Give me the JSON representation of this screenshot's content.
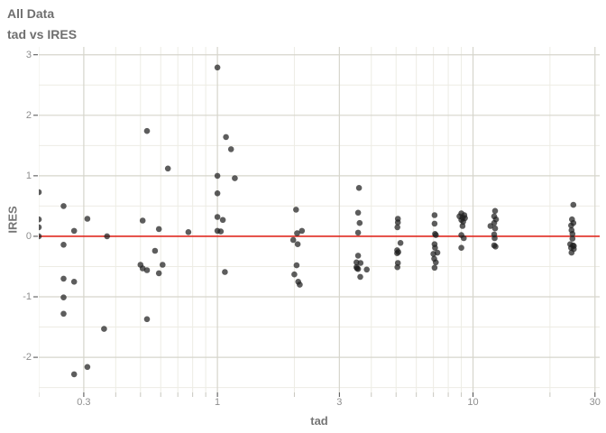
{
  "header": {
    "title": "All Data",
    "subtitle": "tad vs IRES"
  },
  "chart_data": {
    "type": "scatter",
    "title": "All Data",
    "subtitle": "tad vs IRES",
    "xlabel": "tad",
    "ylabel": "IRES",
    "x_scale": "log10",
    "xlim": [
      0.2,
      31.3
    ],
    "ylim": [
      -2.58,
      3.13
    ],
    "grid": true,
    "legend": "none",
    "colors": {
      "point": "#1f1f1f",
      "reference_line": "#e02b22",
      "major_grid": "#d6d5cc",
      "minor_grid": "#edece4",
      "major_tick": "#4a4a4a",
      "minor_tick": "#c8c7bf"
    },
    "point_opacity": 0.72,
    "point_radius": 3.3,
    "x_major_ticks": [
      {
        "value": 0.3,
        "label": "0.3"
      },
      {
        "value": 1,
        "label": "1"
      },
      {
        "value": 3,
        "label": "3"
      },
      {
        "value": 10,
        "label": "10"
      },
      {
        "value": 30,
        "label": "30"
      }
    ],
    "x_minor_ticks": [
      0.2,
      0.4,
      0.5,
      0.6,
      0.7,
      0.8,
      0.9,
      2,
      4,
      5,
      6,
      7,
      8,
      9,
      20
    ],
    "y_major_ticks": [
      {
        "value": 3,
        "label": "3"
      },
      {
        "value": 2,
        "label": "2"
      },
      {
        "value": 1,
        "label": "1"
      },
      {
        "value": 0,
        "label": "0"
      },
      {
        "value": -1,
        "label": "-1"
      },
      {
        "value": -2,
        "label": "-2"
      }
    ],
    "y_minor_ticks": [
      2.5,
      1.5,
      0.5,
      -0.5,
      -1.5,
      -2.5
    ],
    "reference_line": {
      "y": 0
    },
    "points": [
      [
        0.2,
        0.73
      ],
      [
        0.2,
        0.28
      ],
      [
        0.2,
        0.15
      ],
      [
        0.2,
        0.0
      ],
      [
        0.25,
        0.5
      ],
      [
        0.25,
        -0.14
      ],
      [
        0.25,
        -0.7
      ],
      [
        0.25,
        -1.01
      ],
      [
        0.25,
        -1.28
      ],
      [
        0.275,
        0.09
      ],
      [
        0.275,
        -0.75
      ],
      [
        0.275,
        -2.28
      ],
      [
        0.31,
        0.29
      ],
      [
        0.31,
        -2.16
      ],
      [
        0.37,
        0.0
      ],
      [
        0.36,
        -1.53
      ],
      [
        0.51,
        0.26
      ],
      [
        0.53,
        1.74
      ],
      [
        0.5,
        -0.47
      ],
      [
        0.51,
        -0.53
      ],
      [
        0.53,
        -0.56
      ],
      [
        0.53,
        -1.37
      ],
      [
        0.59,
        0.12
      ],
      [
        0.57,
        -0.24
      ],
      [
        0.61,
        -0.47
      ],
      [
        0.59,
        -0.61
      ],
      [
        0.64,
        1.12
      ],
      [
        0.77,
        0.07
      ],
      [
        1.0,
        2.79
      ],
      [
        1.08,
        1.64
      ],
      [
        1.13,
        1.44
      ],
      [
        1.0,
        1.0
      ],
      [
        1.17,
        0.96
      ],
      [
        1.0,
        0.71
      ],
      [
        1.0,
        0.32
      ],
      [
        1.05,
        0.27
      ],
      [
        1.0,
        0.09
      ],
      [
        1.03,
        0.08
      ],
      [
        1.07,
        -0.59
      ],
      [
        2.03,
        0.44
      ],
      [
        2.14,
        0.09
      ],
      [
        2.05,
        0.05
      ],
      [
        1.98,
        -0.06
      ],
      [
        2.06,
        -0.13
      ],
      [
        2.04,
        -0.48
      ],
      [
        2.0,
        -0.63
      ],
      [
        2.07,
        -0.75
      ],
      [
        2.1,
        -0.8
      ],
      [
        3.58,
        0.8
      ],
      [
        3.55,
        0.39
      ],
      [
        3.6,
        0.22
      ],
      [
        3.55,
        0.06
      ],
      [
        3.55,
        -0.32
      ],
      [
        3.5,
        -0.43
      ],
      [
        3.63,
        -0.44
      ],
      [
        3.5,
        -0.51
      ],
      [
        3.52,
        -0.53
      ],
      [
        3.55,
        -0.54
      ],
      [
        3.84,
        -0.55
      ],
      [
        3.62,
        -0.67
      ],
      [
        5.08,
        0.29
      ],
      [
        5.08,
        0.23
      ],
      [
        5.06,
        0.15
      ],
      [
        5.2,
        -0.11
      ],
      [
        5.05,
        -0.23
      ],
      [
        5.1,
        -0.26
      ],
      [
        5.05,
        -0.28
      ],
      [
        5.08,
        -0.44
      ],
      [
        5.06,
        -0.51
      ],
      [
        7.07,
        0.35
      ],
      [
        7.07,
        0.21
      ],
      [
        7.1,
        0.04
      ],
      [
        7.15,
        0.02
      ],
      [
        7.07,
        -0.13
      ],
      [
        7.1,
        -0.19
      ],
      [
        7.25,
        -0.27
      ],
      [
        7.0,
        -0.29
      ],
      [
        7.05,
        -0.37
      ],
      [
        7.15,
        -0.43
      ],
      [
        7.07,
        -0.52
      ],
      [
        9.0,
        0.38
      ],
      [
        9.25,
        0.35
      ],
      [
        8.85,
        0.33
      ],
      [
        9.1,
        0.31
      ],
      [
        9.3,
        0.3
      ],
      [
        9.0,
        0.27
      ],
      [
        9.15,
        0.24
      ],
      [
        9.1,
        0.17
      ],
      [
        9.0,
        0.02
      ],
      [
        9.2,
        -0.03
      ],
      [
        9.0,
        -0.19
      ],
      [
        12.2,
        0.42
      ],
      [
        12.1,
        0.33
      ],
      [
        12.3,
        0.28
      ],
      [
        12.1,
        0.22
      ],
      [
        11.7,
        0.17
      ],
      [
        12.2,
        0.13
      ],
      [
        12.1,
        0.03
      ],
      [
        12.15,
        -0.03
      ],
      [
        12.1,
        -0.15
      ],
      [
        12.25,
        -0.17
      ],
      [
        24.7,
        0.52
      ],
      [
        24.4,
        0.28
      ],
      [
        24.7,
        0.22
      ],
      [
        24.2,
        0.18
      ],
      [
        24.3,
        0.1
      ],
      [
        24.5,
        0.04
      ],
      [
        24.5,
        -0.04
      ],
      [
        24.0,
        -0.13
      ],
      [
        24.6,
        -0.15
      ],
      [
        24.8,
        -0.16
      ],
      [
        24.2,
        -0.19
      ],
      [
        24.8,
        -0.21
      ],
      [
        24.3,
        -0.27
      ]
    ]
  }
}
